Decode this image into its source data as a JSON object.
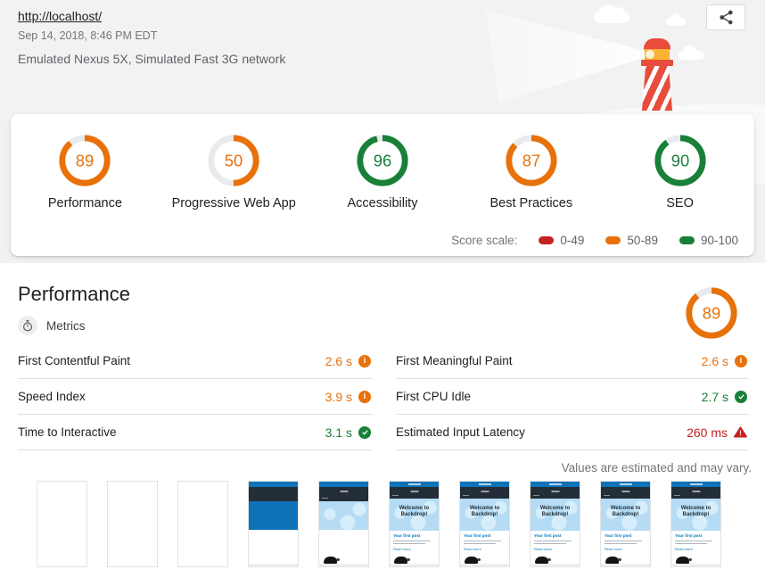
{
  "header": {
    "url": "http://localhost/",
    "timestamp": "Sep 14, 2018, 8:46 PM EDT",
    "environment": "Emulated Nexus 5X, Simulated Fast 3G network"
  },
  "colors": {
    "pass": "#188038",
    "average": "#e8710a",
    "fail": "#c5221f",
    "header_bg": "#f2f2f2",
    "brand_blue": "#0d72b8",
    "link_blue": "#0074bd"
  },
  "scores": [
    {
      "label": "Performance",
      "score": 89,
      "rating": "average"
    },
    {
      "label": "Progressive Web App",
      "score": 50,
      "rating": "average"
    },
    {
      "label": "Accessibility",
      "score": 96,
      "rating": "pass"
    },
    {
      "label": "Best Practices",
      "score": 87,
      "rating": "average"
    },
    {
      "label": "SEO",
      "score": 90,
      "rating": "pass"
    }
  ],
  "score_scale": {
    "label": "Score scale:",
    "ranges": [
      {
        "label": "0-49",
        "rating": "fail"
      },
      {
        "label": "50-89",
        "rating": "average"
      },
      {
        "label": "90-100",
        "rating": "pass"
      }
    ]
  },
  "performance": {
    "title": "Performance",
    "score": 89,
    "rating": "average",
    "metrics_heading": "Metrics",
    "metrics_left": [
      {
        "name": "First Contentful Paint",
        "value": "2.6 s",
        "rating": "average"
      },
      {
        "name": "Speed Index",
        "value": "3.9 s",
        "rating": "average"
      },
      {
        "name": "Time to Interactive",
        "value": "3.1 s",
        "rating": "pass"
      }
    ],
    "metrics_right": [
      {
        "name": "First Meaningful Paint",
        "value": "2.6 s",
        "rating": "average"
      },
      {
        "name": "First CPU Idle",
        "value": "2.7 s",
        "rating": "pass"
      },
      {
        "name": "Estimated Input Latency",
        "value": "260 ms",
        "rating": "fail"
      }
    ],
    "disclaimer": "Values are estimated and may vary."
  },
  "filmstrip": {
    "welcome_text": "Welcome to Backdrop!",
    "post_link_text": "Your first post",
    "read_more_text": "Read more",
    "frames": [
      "blank",
      "blank",
      "blank",
      "header",
      "hero",
      "full",
      "full",
      "full",
      "full",
      "full"
    ]
  }
}
